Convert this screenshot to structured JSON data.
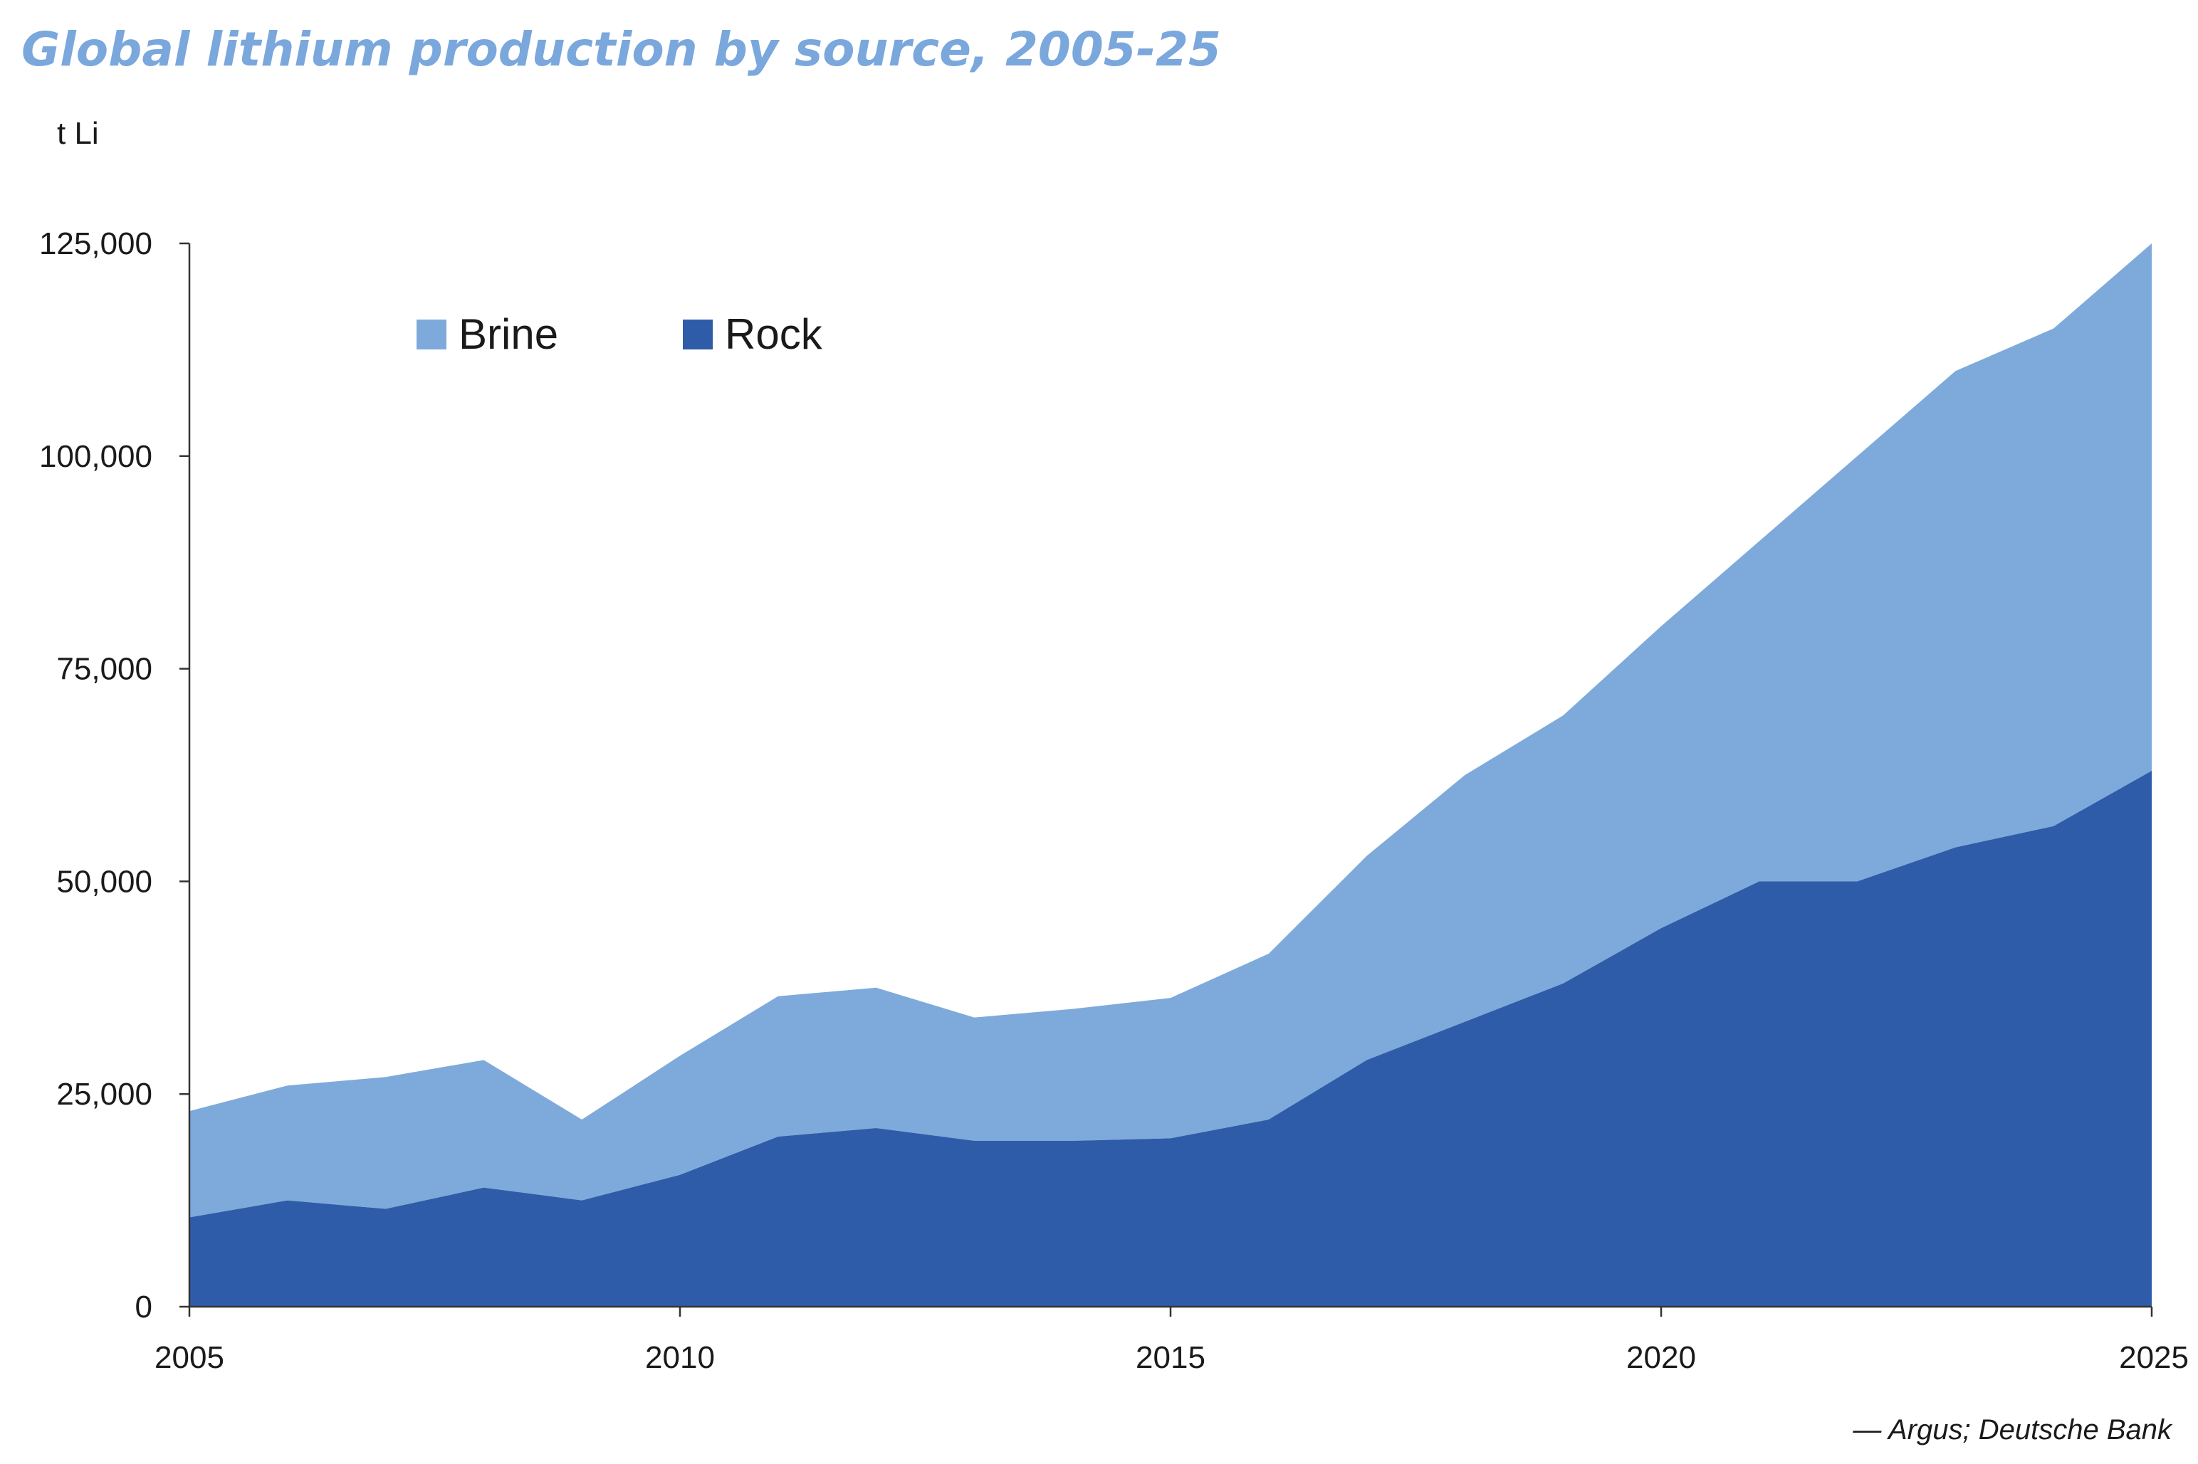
{
  "colors": {
    "brine": "#7eaadb",
    "rock": "#2f5ca8",
    "title": "#7aa7dc"
  },
  "chart_data": {
    "type": "area",
    "stacked": true,
    "title": "Global lithium production by source, 2005-25",
    "ylabel": "t Li",
    "xlabel": "",
    "x": [
      2005,
      2006,
      2007,
      2008,
      2009,
      2010,
      2011,
      2012,
      2013,
      2014,
      2015,
      2016,
      2017,
      2018,
      2019,
      2020,
      2021,
      2022,
      2023,
      2024,
      2025
    ],
    "series": [
      {
        "name": "Rock",
        "color": "#2f5ca8",
        "values": [
          10500,
          12500,
          11500,
          14000,
          12500,
          15500,
          20000,
          21000,
          19500,
          19500,
          19800,
          22000,
          29000,
          33500,
          38000,
          44500,
          50000,
          50000,
          54000,
          56500,
          63000
        ]
      },
      {
        "name": "Brine",
        "color": "#7eaadb",
        "values": [
          12500,
          13500,
          15500,
          15000,
          9500,
          14000,
          16500,
          16500,
          14500,
          15500,
          16500,
          19500,
          24000,
          29000,
          31500,
          35500,
          40000,
          50000,
          56000,
          58500,
          62000
        ]
      }
    ],
    "totals": [
      23000,
      26000,
      27000,
      29000,
      22000,
      29500,
      36500,
      37500,
      34000,
      35000,
      36300,
      41500,
      53000,
      62500,
      69500,
      80000,
      90000,
      100000,
      110000,
      115000,
      125000
    ],
    "ylim": [
      0,
      125000
    ],
    "xlim": [
      2005,
      2025
    ],
    "yticks": [
      0,
      25000,
      50000,
      75000,
      100000,
      125000
    ],
    "ytick_labels": [
      "0",
      "25,000",
      "50,000",
      "75,000",
      "100,000",
      "125,000"
    ],
    "xticks": [
      2005,
      2010,
      2015,
      2020,
      2025
    ],
    "xtick_labels": [
      "2005",
      "2010",
      "2015",
      "2020",
      "2025"
    ],
    "legend": [
      "Brine",
      "Rock"
    ],
    "legend_position": "top-left",
    "grid": false,
    "source": "— Argus; Deutsche Bank"
  }
}
